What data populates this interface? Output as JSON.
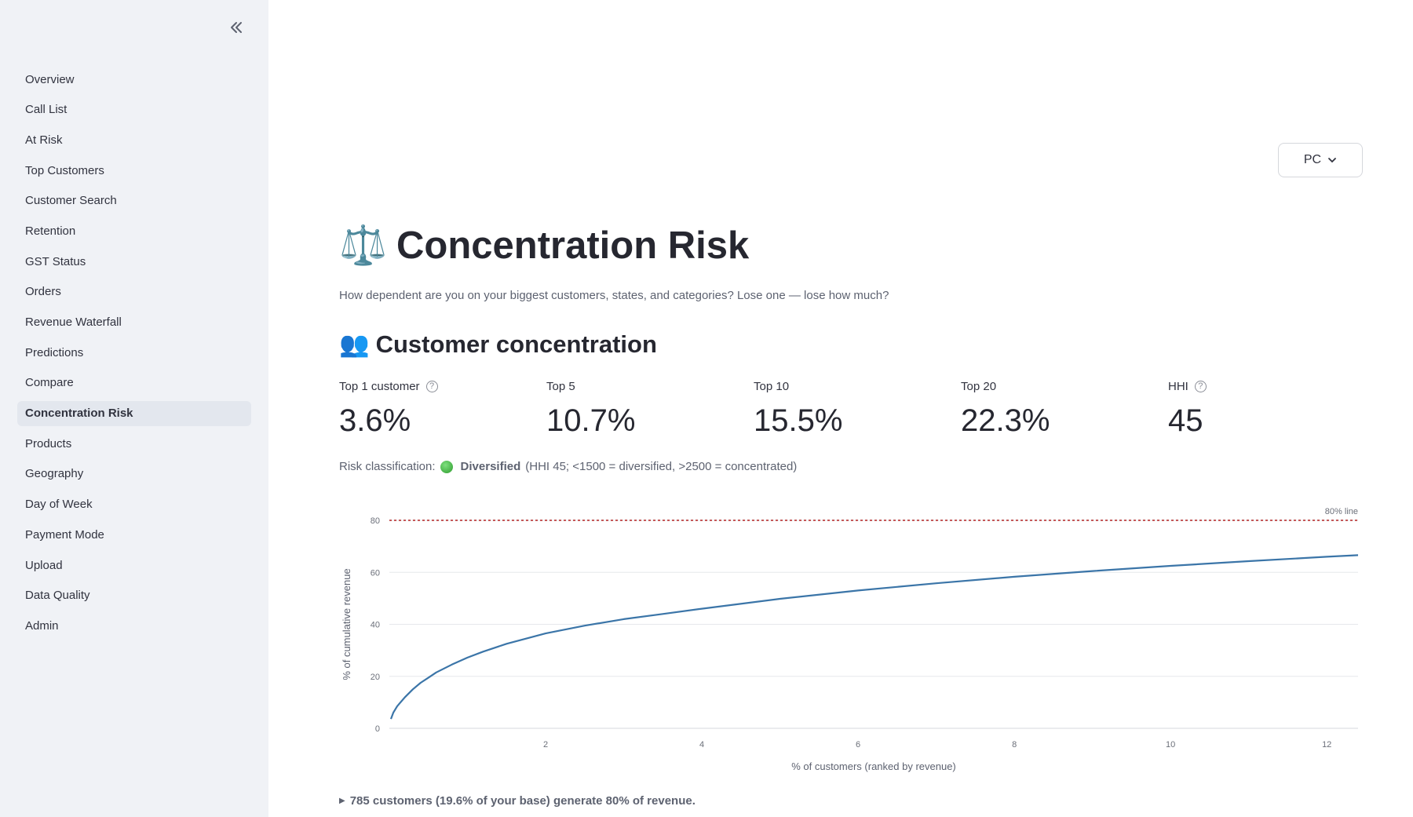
{
  "sidebar": {
    "items": [
      {
        "label": "Overview"
      },
      {
        "label": "Call List"
      },
      {
        "label": "At Risk"
      },
      {
        "label": "Top Customers"
      },
      {
        "label": "Customer Search"
      },
      {
        "label": "Retention"
      },
      {
        "label": "GST Status"
      },
      {
        "label": "Orders"
      },
      {
        "label": "Revenue Waterfall"
      },
      {
        "label": "Predictions"
      },
      {
        "label": "Compare"
      },
      {
        "label": "Concentration Risk",
        "active": true
      },
      {
        "label": "Products"
      },
      {
        "label": "Geography"
      },
      {
        "label": "Day of Week"
      },
      {
        "label": "Payment Mode"
      },
      {
        "label": "Upload"
      },
      {
        "label": "Data Quality"
      },
      {
        "label": "Admin"
      }
    ]
  },
  "header": {
    "selector_value": "PC"
  },
  "page": {
    "title_emoji": "⚖️",
    "title": "Concentration Risk",
    "subtitle": "How dependent are you on your biggest customers, states, and categories? Lose one — lose how much?",
    "section_emoji": "👥",
    "section_title": "Customer concentration"
  },
  "metrics": [
    {
      "label": "Top 1 customer",
      "value": "3.6%",
      "help": true
    },
    {
      "label": "Top 5",
      "value": "10.7%",
      "help": false
    },
    {
      "label": "Top 10",
      "value": "15.5%",
      "help": false
    },
    {
      "label": "Top 20",
      "value": "22.3%",
      "help": false
    },
    {
      "label": "HHI",
      "value": "45",
      "help": true
    }
  ],
  "risk": {
    "prefix": "Risk classification:",
    "level": "Diversified",
    "detail": "(HHI 45; <1500 = diversified, >2500 = concentrated)"
  },
  "chart_data": {
    "type": "line",
    "title": "",
    "xlabel": "% of customers (ranked by revenue)",
    "ylabel": "% of cumulative revenue",
    "xlim": [
      0,
      12.4
    ],
    "ylim": [
      0,
      80
    ],
    "xticks": [
      2,
      4,
      6,
      8,
      10,
      12
    ],
    "yticks": [
      0,
      20,
      40,
      60,
      80
    ],
    "grid": true,
    "series": [
      {
        "color": "#3b75a8",
        "x": [
          0.02,
          0.05,
          0.1,
          0.2,
          0.3,
          0.4,
          0.5,
          0.6,
          0.8,
          1,
          1.2,
          1.5,
          2,
          2.5,
          3,
          3.5,
          4,
          5,
          6,
          7,
          8,
          9,
          10,
          11,
          12,
          12.4
        ],
        "y": [
          3.6,
          6,
          8.5,
          12,
          15,
          17.5,
          19.5,
          21.5,
          24.5,
          27.2,
          29.5,
          32.5,
          36.5,
          39.5,
          42,
          44,
          46,
          49.8,
          53,
          55.8,
          58.3,
          60.5,
          62.5,
          64.3,
          66,
          66.6
        ]
      }
    ],
    "reference_line": {
      "y": 80,
      "label": "80% line",
      "color": "#b22222"
    }
  },
  "footnote": "785 customers (19.6% of your base) generate 80% of revenue."
}
